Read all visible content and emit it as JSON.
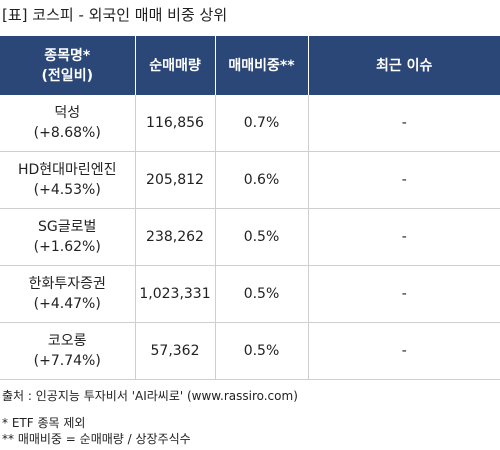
{
  "title": "[표] 코스피 - 외국인 매매 비중 상위",
  "table": {
    "headers": {
      "name_line1": "종목명*",
      "name_line2": "(전일비)",
      "volume": "순매매량",
      "ratio": "매매비중**",
      "issue": "최근 이슈"
    },
    "rows": [
      {
        "name": "덕성",
        "change": "(+8.68%)",
        "volume": "116,856",
        "ratio": "0.7%",
        "issue": "-"
      },
      {
        "name": "HD현대마린엔진",
        "change": "(+4.53%)",
        "volume": "205,812",
        "ratio": "0.6%",
        "issue": "-"
      },
      {
        "name": "SG글로벌",
        "change": "(+1.62%)",
        "volume": "238,262",
        "ratio": "0.5%",
        "issue": "-"
      },
      {
        "name": "한화투자증권",
        "change": "(+4.47%)",
        "volume": "1,023,331",
        "ratio": "0.5%",
        "issue": "-"
      },
      {
        "name": "코오롱",
        "change": "(+7.74%)",
        "volume": "57,362",
        "ratio": "0.5%",
        "issue": "-"
      }
    ]
  },
  "footer": {
    "source": "출처 : 인공지능 투자비서 'AI라씨로' (www.rassiro.com)",
    "note1": "* ETF 종목 제외",
    "note2": "** 매매비중 = 순매매량 / 상장주식수"
  },
  "colors": {
    "header_bg": "#2b4777",
    "ratio_text": "#e0301e",
    "row_border": "#cfcfcf"
  }
}
